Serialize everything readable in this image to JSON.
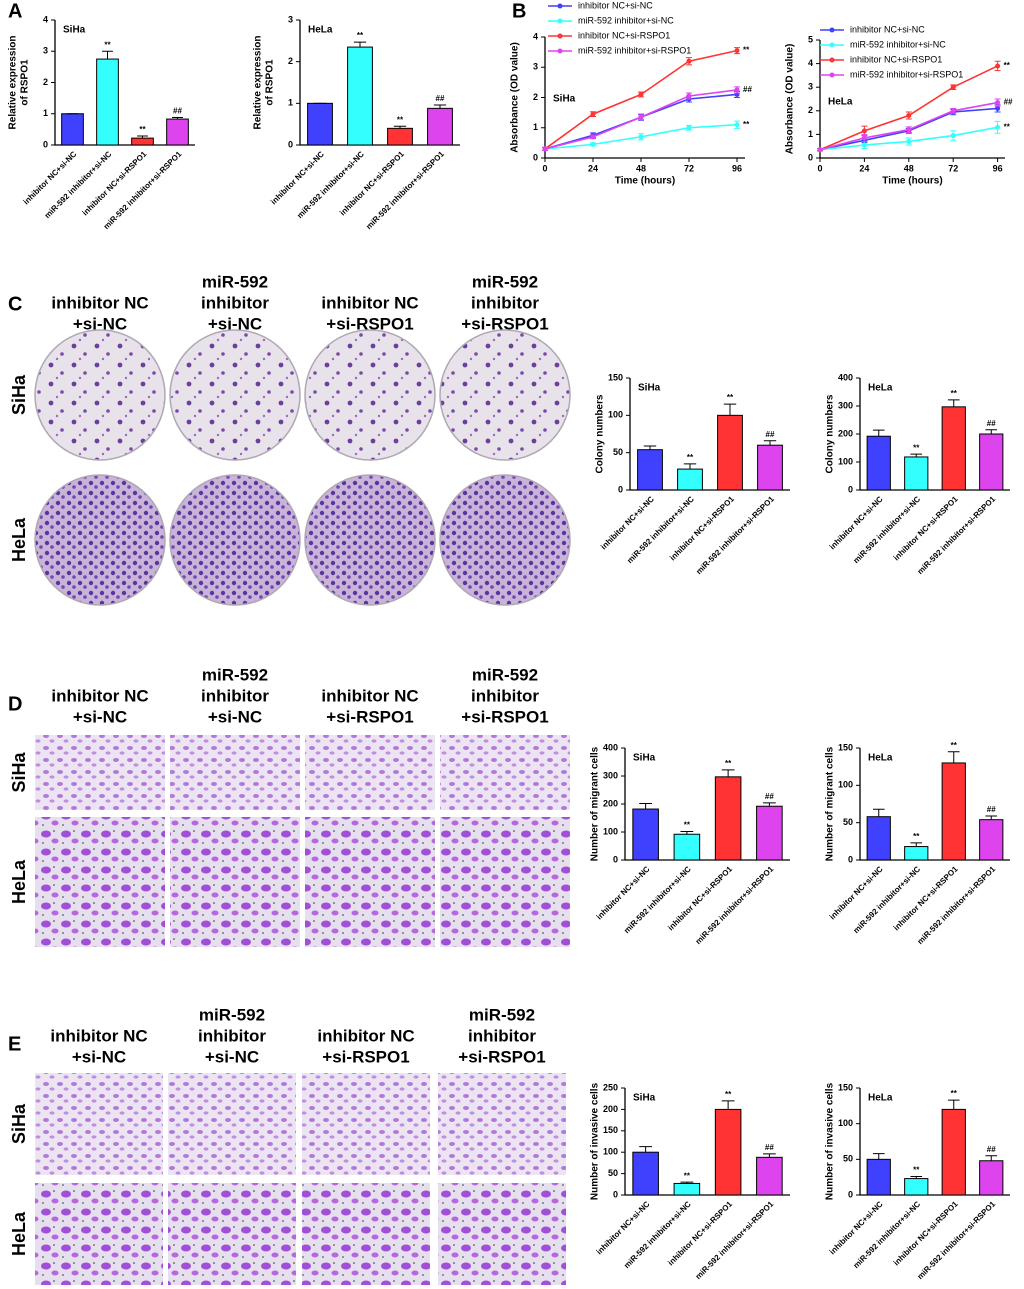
{
  "panels": [
    "A",
    "B",
    "C",
    "D",
    "E"
  ],
  "image_panels": [
    {
      "columns": [
        [
          "inhibitor NC",
          "+si-NC"
        ],
        [
          "miR-592",
          "inhibitor",
          "+si-NC"
        ],
        [
          "inhibitor NC",
          "+si-RSPO1"
        ],
        [
          "miR-592",
          "inhibitor",
          "+si-RSPO1"
        ]
      ],
      "rows": [
        "SiHa",
        "HeLa"
      ]
    },
    {
      "columns": [
        [
          "inhibitor NC",
          "+si-NC"
        ],
        [
          "miR-592",
          "inhibitor",
          "+si-NC"
        ],
        [
          "inhibitor NC",
          "+si-RSPO1"
        ],
        [
          "miR-592",
          "inhibitor",
          "+si-RSPO1"
        ]
      ],
      "rows": [
        "SiHa",
        "HeLa"
      ]
    },
    {
      "columns": [
        [
          "inhibitor NC",
          "+si-NC"
        ],
        [
          "miR-592",
          "inhibitor",
          "+si-NC"
        ],
        [
          "inhibitor NC",
          "+si-RSPO1"
        ],
        [
          "miR-592",
          "inhibitor",
          "+si-RSPO1"
        ]
      ],
      "rows": [
        "SiHa",
        "HeLa"
      ]
    }
  ],
  "chart_data": [
    {
      "type": "bar",
      "title": "SiHa",
      "ylabel": [
        "Relative expression",
        "of RSPO1"
      ],
      "categories": [
        "inhibitor NC+si-NC",
        "miR-592 inhibitor+si-NC",
        "inhibitor NC+si-RSPO1",
        "miR-592 inhibitor+si-RSPO1"
      ],
      "values": [
        1,
        2.75,
        0.22,
        0.83
      ],
      "errors": [
        0,
        0.25,
        0.07,
        0.05
      ],
      "annotations": [
        null,
        "**",
        "**",
        "##"
      ],
      "colors": [
        "#4040ff",
        "#33ffff",
        "#ff3333",
        "#dd44ee"
      ],
      "ylim": [
        0,
        4
      ],
      "yticks": [
        0,
        1,
        2,
        3,
        4
      ]
    },
    {
      "type": "bar",
      "title": "HeLa",
      "ylabel": [
        "Relative expression",
        "of RSPO1"
      ],
      "categories": [
        "inhibitor NC+si-NC",
        "miR-592 inhibitor+si-NC",
        "inhibitor NC+si-RSPO1",
        "miR-592 inhibitor+si-RSPO1"
      ],
      "values": [
        1,
        2.35,
        0.4,
        0.88
      ],
      "errors": [
        0,
        0.12,
        0.05,
        0.08
      ],
      "annotations": [
        null,
        "**",
        "**",
        "##"
      ],
      "colors": [
        "#4040ff",
        "#33ffff",
        "#ff3333",
        "#dd44ee"
      ],
      "ylim": [
        0,
        3
      ],
      "yticks": [
        0,
        1,
        2,
        3
      ]
    },
    {
      "type": "line",
      "title": "SiHa",
      "xlabel": "Time (hours)",
      "ylabel": [
        "Absorbance (OD value)"
      ],
      "x": [
        0,
        24,
        48,
        72,
        96
      ],
      "xlim": [
        0,
        100
      ],
      "xticks": [
        0,
        24,
        48,
        72,
        96
      ],
      "ylim": [
        0,
        4
      ],
      "yticks": [
        0,
        1,
        2,
        3,
        4
      ],
      "legend": "top",
      "series": [
        {
          "name": "inhibitor NC+si-NC",
          "color": "#4040ff",
          "values": [
            0.3,
            0.75,
            1.35,
            1.95,
            2.1
          ],
          "errors": [
            0.05,
            0.08,
            0.1,
            0.1,
            0.1
          ],
          "end_label": null
        },
        {
          "name": "miR-592 inhibitor+si-NC",
          "color": "#33ffff",
          "values": [
            0.3,
            0.45,
            0.7,
            1.0,
            1.1
          ],
          "errors": [
            0.05,
            0.05,
            0.1,
            0.08,
            0.12
          ],
          "end_label": "**"
        },
        {
          "name": "inhibitor NC+si-RSPO1",
          "color": "#ff3333",
          "values": [
            0.3,
            1.45,
            2.1,
            3.2,
            3.55
          ],
          "errors": [
            0.05,
            0.08,
            0.08,
            0.12,
            0.1
          ],
          "end_label": "**"
        },
        {
          "name": "miR-592 inhibitor+si-RSPO1",
          "color": "#dd44ee",
          "values": [
            0.3,
            0.7,
            1.35,
            2.05,
            2.25
          ],
          "errors": [
            0.05,
            0.06,
            0.08,
            0.1,
            0.1
          ],
          "end_label": "##"
        }
      ]
    },
    {
      "type": "line",
      "title": "HeLa",
      "xlabel": "Time (hours)",
      "ylabel": [
        "Absorbance (OD value)"
      ],
      "x": [
        0,
        24,
        48,
        72,
        96
      ],
      "xlim": [
        0,
        100
      ],
      "xticks": [
        0,
        24,
        48,
        72,
        96
      ],
      "ylim": [
        0,
        5
      ],
      "yticks": [
        0,
        1,
        2,
        3,
        4,
        5
      ],
      "legend": "top",
      "series": [
        {
          "name": "inhibitor NC+si-NC",
          "color": "#4040ff",
          "values": [
            0.35,
            0.75,
            1.15,
            1.95,
            2.1
          ],
          "errors": [
            0.05,
            0.1,
            0.1,
            0.12,
            0.15
          ],
          "end_label": null
        },
        {
          "name": "miR-592 inhibitor+si-NC",
          "color": "#33ffff",
          "values": [
            0.35,
            0.55,
            0.7,
            0.95,
            1.3
          ],
          "errors": [
            0.05,
            0.15,
            0.15,
            0.2,
            0.25
          ],
          "end_label": "**"
        },
        {
          "name": "inhibitor NC+si-RSPO1",
          "color": "#ff3333",
          "values": [
            0.35,
            1.15,
            1.8,
            3.0,
            3.9
          ],
          "errors": [
            0.05,
            0.2,
            0.15,
            0.1,
            0.2
          ],
          "end_label": "**"
        },
        {
          "name": "miR-592 inhibitor+si-RSPO1",
          "color": "#dd44ee",
          "values": [
            0.35,
            0.85,
            1.2,
            2.0,
            2.35
          ],
          "errors": [
            0.05,
            0.15,
            0.12,
            0.1,
            0.15
          ],
          "end_label": "##"
        }
      ]
    },
    {
      "type": "bar",
      "title": "SiHa",
      "ylabel": [
        "Colony numbers"
      ],
      "categories": [
        "inhibitor NC+si-NC",
        "miR-592 inhibitor+si-NC",
        "inhibitor NC+si-RSPO1",
        "miR-592 inhibitor+si-RSPO1"
      ],
      "values": [
        54,
        28,
        100,
        60
      ],
      "errors": [
        5,
        7,
        15,
        6
      ],
      "annotations": [
        null,
        "**",
        "**",
        "##"
      ],
      "colors": [
        "#4040ff",
        "#33ffff",
        "#ff3333",
        "#dd44ee"
      ],
      "ylim": [
        0,
        150
      ],
      "yticks": [
        0,
        50,
        100,
        150
      ]
    },
    {
      "type": "bar",
      "title": "HeLa",
      "ylabel": [
        "Colony numbers"
      ],
      "categories": [
        "inhibitor NC+si-NC",
        "miR-592 inhibitor+si-NC",
        "inhibitor NC+si-RSPO1",
        "miR-592 inhibitor+si-RSPO1"
      ],
      "values": [
        192,
        118,
        297,
        200
      ],
      "errors": [
        22,
        10,
        25,
        15
      ],
      "annotations": [
        null,
        "**",
        "**",
        "##"
      ],
      "colors": [
        "#4040ff",
        "#33ffff",
        "#ff3333",
        "#dd44ee"
      ],
      "ylim": [
        0,
        400
      ],
      "yticks": [
        0,
        100,
        200,
        300,
        400
      ]
    },
    {
      "type": "bar",
      "title": "SiHa",
      "ylabel": [
        "Number of migrant cells"
      ],
      "categories": [
        "inhibitor NC+si-NC",
        "miR-592 inhibitor+si-NC",
        "inhibitor NC+si-RSPO1",
        "miR-592 inhibitor+si-RSPO1"
      ],
      "values": [
        182,
        92,
        297,
        192
      ],
      "errors": [
        20,
        10,
        25,
        12
      ],
      "annotations": [
        null,
        "**",
        "**",
        "##"
      ],
      "colors": [
        "#4040ff",
        "#33ffff",
        "#ff3333",
        "#dd44ee"
      ],
      "ylim": [
        0,
        400
      ],
      "yticks": [
        0,
        100,
        200,
        300,
        400
      ]
    },
    {
      "type": "bar",
      "title": "HeLa",
      "ylabel": [
        "Number of migrant cells"
      ],
      "categories": [
        "inhibitor NC+si-NC",
        "miR-592 inhibitor+si-NC",
        "inhibitor NC+si-RSPO1",
        "miR-592 inhibitor+si-RSPO1"
      ],
      "values": [
        58,
        18,
        130,
        54
      ],
      "errors": [
        10,
        5,
        15,
        5
      ],
      "annotations": [
        null,
        "**",
        "**",
        "##"
      ],
      "colors": [
        "#4040ff",
        "#33ffff",
        "#ff3333",
        "#dd44ee"
      ],
      "ylim": [
        0,
        150
      ],
      "yticks": [
        0,
        50,
        100,
        150
      ]
    },
    {
      "type": "bar",
      "title": "SiHa",
      "ylabel": [
        "Number of invasive cells"
      ],
      "categories": [
        "inhibitor NC+si-NC",
        "miR-592 inhibitor+si-NC",
        "inhibitor NC+si-RSPO1",
        "miR-592 inhibitor+si-RSPO1"
      ],
      "values": [
        100,
        27,
        200,
        88
      ],
      "errors": [
        13,
        3,
        20,
        8
      ],
      "annotations": [
        null,
        "**",
        "**",
        "##"
      ],
      "colors": [
        "#4040ff",
        "#33ffff",
        "#ff3333",
        "#dd44ee"
      ],
      "ylim": [
        0,
        250
      ],
      "yticks": [
        0,
        50,
        100,
        150,
        200,
        250
      ]
    },
    {
      "type": "bar",
      "title": "HeLa",
      "ylabel": [
        "Number of invasive cells"
      ],
      "categories": [
        "inhibitor NC+si-NC",
        "miR-592 inhibitor+si-NC",
        "inhibitor NC+si-RSPO1",
        "miR-592 inhibitor+si-RSPO1"
      ],
      "values": [
        50,
        23,
        120,
        48
      ],
      "errors": [
        8,
        3,
        13,
        7
      ],
      "annotations": [
        null,
        "**",
        "**",
        "##"
      ],
      "colors": [
        "#4040ff",
        "#33ffff",
        "#ff3333",
        "#dd44ee"
      ],
      "ylim": [
        0,
        150
      ],
      "yticks": [
        0,
        50,
        100,
        150
      ]
    }
  ]
}
